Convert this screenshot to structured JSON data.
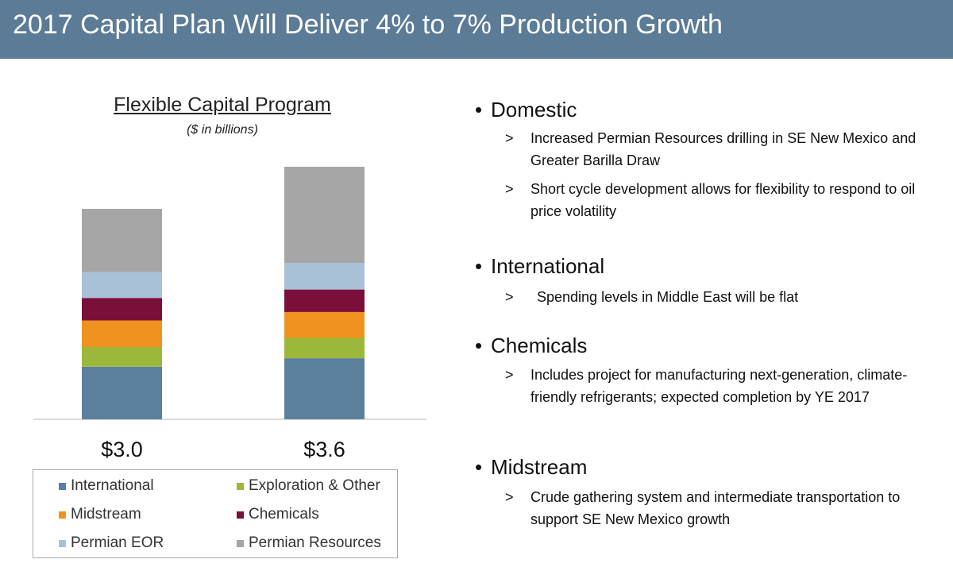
{
  "header": {
    "title": "2017 Capital Plan Will Deliver 4% to 7% Production Growth"
  },
  "chart_data": {
    "type": "bar",
    "stacked": true,
    "title": "Flexible Capital Program",
    "subtitle": "($ in billions)",
    "categories": [
      "$3.0",
      "$3.6"
    ],
    "totals": [
      3.0,
      3.6
    ],
    "series": [
      {
        "name": "International",
        "color": "#5b7f9c",
        "values": [
          0.75,
          0.87
        ]
      },
      {
        "name": "Exploration & Other",
        "color": "#9bb83a",
        "values": [
          0.28,
          0.29
        ]
      },
      {
        "name": "Midstream",
        "color": "#f0921f",
        "values": [
          0.38,
          0.37
        ]
      },
      {
        "name": "Chemicals",
        "color": "#7a0f3a",
        "values": [
          0.32,
          0.32
        ]
      },
      {
        "name": "Permian EOR",
        "color": "#a9c1d7",
        "values": [
          0.37,
          0.38
        ]
      },
      {
        "name": "Permian Resources",
        "color": "#a6a6a6",
        "values": [
          0.9,
          1.37
        ]
      }
    ],
    "legend_position": "bottom",
    "ylim": [
      0,
      3.6
    ],
    "grid": false
  },
  "legend": {
    "items": [
      {
        "label": "International",
        "color": "#5b7f9c"
      },
      {
        "label": "Exploration & Other",
        "color": "#9bb83a"
      },
      {
        "label": "Midstream",
        "color": "#f0921f"
      },
      {
        "label": "Chemicals",
        "color": "#7a0f3a"
      },
      {
        "label": "Permian EOR",
        "color": "#a9c1d7"
      },
      {
        "label": "Permian Resources",
        "color": "#a6a6a6"
      }
    ]
  },
  "sections": [
    {
      "heading": "Domestic",
      "items": [
        {
          "marker": ">",
          "text": "Increased Permian Resources drilling in SE New Mexico and Greater Barilla Draw"
        },
        {
          "marker": ">",
          "text": "Short cycle development allows for flexibility to respond to oil price volatility"
        }
      ]
    },
    {
      "heading": "International",
      "items": [
        {
          "marker": ">",
          "text": "Spending levels in Middle East will be flat"
        }
      ]
    },
    {
      "heading": "Chemicals",
      "items": [
        {
          "marker": ">",
          "text": "Includes project for manufacturing next-generation, climate-friendly refrigerants; expected completion by YE 2017"
        }
      ]
    },
    {
      "heading": "Midstream",
      "items": [
        {
          "marker": ">",
          "text": "Crude gathering system and intermediate transportation to support SE New Mexico growth"
        }
      ]
    }
  ],
  "bullet_glyph": "•"
}
